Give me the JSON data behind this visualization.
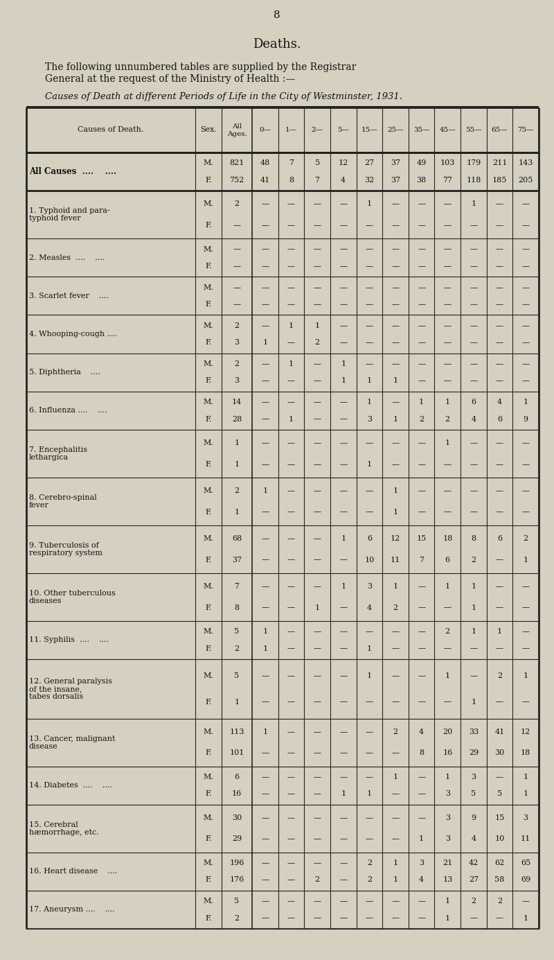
{
  "page_number": "8",
  "title": "Deaths.",
  "subtitle1": "The following unnumbered tables are supplied by the Registrar",
  "subtitle2": "General at the request of the Ministry of Health :—",
  "table_title": "Causes of Death at different Periods of Life in the City of Westminster, 1931.",
  "col_header1": "Causes of Death.",
  "col_header2": "Sex.",
  "col_header3": "All\nAges.",
  "age_headers": [
    "0—",
    "1—",
    "2—",
    "5—",
    "15—",
    "25—",
    "35—",
    "45—",
    "55—",
    "65—",
    "75—"
  ],
  "rows": [
    {
      "cause": "All Causes  ....    ....",
      "cause_style": "allcauses",
      "sex": [
        "M.",
        "F."
      ],
      "all_ages": [
        "821",
        "752"
      ],
      "data": [
        [
          "48",
          "7",
          "5",
          "12",
          "27",
          "37",
          "49",
          "103",
          "179",
          "211",
          "143"
        ],
        [
          "41",
          "8",
          "7",
          "4",
          "32",
          "37",
          "38",
          "77",
          "118",
          "185",
          "205"
        ]
      ],
      "heavy_bottom": true,
      "n_lines": 1
    },
    {
      "cause": "1. Typhoid and para-\ntyphoid fever",
      "sex": [
        "M.",
        "F."
      ],
      "all_ages": [
        "2",
        "—"
      ],
      "data": [
        [
          "—",
          "—",
          "—",
          "—",
          "1",
          "—",
          "—",
          "—",
          "1",
          "—",
          "—"
        ],
        [
          "—",
          "—",
          "—",
          "—",
          "—",
          "—",
          "—",
          "—",
          "—",
          "—",
          "—"
        ]
      ],
      "n_lines": 2
    },
    {
      "cause": "2. Measles  ....    ....",
      "sex": [
        "M.",
        "F."
      ],
      "all_ages": [
        "—",
        "—"
      ],
      "data": [
        [
          "—",
          "—",
          "—",
          "—",
          "—",
          "—",
          "—",
          "—",
          "—",
          "—",
          "—"
        ],
        [
          "—",
          "—",
          "—",
          "—",
          "—",
          "—",
          "—",
          "—",
          "—",
          "—",
          "—"
        ]
      ],
      "n_lines": 1
    },
    {
      "cause": "3. Scarlet fever    ....",
      "sex": [
        "M.",
        "F."
      ],
      "all_ages": [
        "—",
        "—"
      ],
      "data": [
        [
          "—",
          "—",
          "—",
          "—",
          "—",
          "—",
          "—",
          "—",
          "—",
          "—",
          "—"
        ],
        [
          "—",
          "—",
          "—",
          "—",
          "—",
          "—",
          "—",
          "—",
          "—",
          "—",
          "—"
        ]
      ],
      "n_lines": 1
    },
    {
      "cause": "4. Whooping-cough ....",
      "sex": [
        "M.",
        "F."
      ],
      "all_ages": [
        "2",
        "3"
      ],
      "data": [
        [
          "—",
          "1",
          "1",
          "—",
          "—",
          "—",
          "—",
          "—",
          "—",
          "—",
          "—"
        ],
        [
          "1",
          "—",
          "2",
          "—",
          "—",
          "—",
          "—",
          "—",
          "—",
          "—",
          "—"
        ]
      ],
      "n_lines": 1
    },
    {
      "cause": "5. Diphtheria    ....",
      "sex": [
        "M.",
        "F."
      ],
      "all_ages": [
        "2",
        "3"
      ],
      "data": [
        [
          "—",
          "1",
          "—",
          "1",
          "—",
          "—",
          "—",
          "—",
          "—",
          "—",
          "—"
        ],
        [
          "—",
          "—",
          "—",
          "1",
          "1",
          "1",
          "—",
          "—",
          "—",
          "—",
          "—"
        ]
      ],
      "n_lines": 1
    },
    {
      "cause": "6. Influenza ....    ....",
      "sex": [
        "M.",
        "F."
      ],
      "all_ages": [
        "14",
        "28"
      ],
      "data": [
        [
          "—",
          "—",
          "—",
          "—",
          "1",
          "—",
          "1",
          "1",
          "6",
          "4",
          "1"
        ],
        [
          "—",
          "1",
          "—",
          "—",
          "3",
          "1",
          "2",
          "2",
          "4",
          "6",
          "9"
        ]
      ],
      "n_lines": 1
    },
    {
      "cause": "7. Encephalitis\nlethargica",
      "sex": [
        "M.",
        "F."
      ],
      "all_ages": [
        "1",
        "1"
      ],
      "data": [
        [
          "—",
          "—",
          "—",
          "—",
          "—",
          "—",
          "—",
          "1",
          "—",
          "—",
          "—"
        ],
        [
          "—",
          "—",
          "—",
          "—",
          "1",
          "—",
          "—",
          "—",
          "—",
          "—",
          "—"
        ]
      ],
      "n_lines": 2
    },
    {
      "cause": "8. Cerebro-spinal\nfever",
      "sex": [
        "M.",
        "F."
      ],
      "all_ages": [
        "2",
        "1"
      ],
      "data": [
        [
          "1",
          "—",
          "—",
          "—",
          "—",
          "1",
          "—",
          "—",
          "—",
          "—",
          "—"
        ],
        [
          "—",
          "—",
          "—",
          "—",
          "—",
          "1",
          "—",
          "—",
          "—",
          "—",
          "—"
        ]
      ],
      "n_lines": 2
    },
    {
      "cause": "9. Tuberculosis of\nrespiratory system",
      "sex": [
        "M.",
        "F."
      ],
      "all_ages": [
        "68",
        "37"
      ],
      "data": [
        [
          "—",
          "—",
          "—",
          "1",
          "6",
          "12",
          "15",
          "18",
          "8",
          "6",
          "2"
        ],
        [
          "—",
          "—",
          "—",
          "—",
          "10",
          "11",
          "7",
          "6",
          "2",
          "—",
          "1"
        ]
      ],
      "n_lines": 2
    },
    {
      "cause": "10. Other tuberculous\ndiseases",
      "sex": [
        "M.",
        "F."
      ],
      "all_ages": [
        "7",
        "8"
      ],
      "data": [
        [
          "—",
          "—",
          "—",
          "1",
          "3",
          "1",
          "—",
          "1",
          "1",
          "—",
          "—"
        ],
        [
          "—",
          "—",
          "1",
          "—",
          "4",
          "2",
          "—",
          "—",
          "1",
          "—",
          "—"
        ]
      ],
      "n_lines": 2
    },
    {
      "cause": "11. Syphilis  ....    ....",
      "sex": [
        "M.",
        "F."
      ],
      "all_ages": [
        "5",
        "2"
      ],
      "data": [
        [
          "1",
          "—",
          "—",
          "—",
          "—",
          "—",
          "—",
          "2",
          "1",
          "1",
          "—"
        ],
        [
          "1",
          "—",
          "—",
          "—",
          "1",
          "—",
          "—",
          "—",
          "—",
          "—",
          "—"
        ]
      ],
      "n_lines": 1
    },
    {
      "cause": "12. General paralysis\nof the insane,\ntabes dorsalis",
      "sex": [
        "M.",
        "F."
      ],
      "all_ages": [
        "5",
        "1"
      ],
      "data": [
        [
          "—",
          "—",
          "—",
          "—",
          "1",
          "—",
          "—",
          "1",
          "—",
          "2",
          "1"
        ],
        [
          "—",
          "—",
          "—",
          "—",
          "—",
          "—",
          "—",
          "—",
          "1",
          "—",
          "—"
        ]
      ],
      "n_lines": 3
    },
    {
      "cause": "13. Cancer, malignant\ndisease",
      "sex": [
        "M.",
        "F."
      ],
      "all_ages": [
        "113",
        "101"
      ],
      "data": [
        [
          "1",
          "—",
          "—",
          "—",
          "—",
          "2",
          "4",
          "20",
          "33",
          "41",
          "12"
        ],
        [
          "—",
          "—",
          "—",
          "—",
          "—",
          "—",
          "8",
          "16",
          "29",
          "30",
          "18"
        ]
      ],
      "n_lines": 2
    },
    {
      "cause": "14. Diabetes  ....    ....",
      "sex": [
        "M.",
        "F."
      ],
      "all_ages": [
        "6",
        "16"
      ],
      "data": [
        [
          "—",
          "—",
          "—",
          "—",
          "—",
          "1",
          "—",
          "1",
          "3",
          "—",
          "1"
        ],
        [
          "—",
          "—",
          "—",
          "1",
          "1",
          "—",
          "—",
          "3",
          "5",
          "5",
          "1"
        ]
      ],
      "n_lines": 1
    },
    {
      "cause": "15. Cerebral\nhæmorrhage, etc.",
      "sex": [
        "M.",
        "F."
      ],
      "all_ages": [
        "30",
        "29"
      ],
      "data": [
        [
          "—",
          "—",
          "—",
          "—",
          "—",
          "—",
          "—",
          "3",
          "9",
          "15",
          "3"
        ],
        [
          "—",
          "—",
          "—",
          "—",
          "—",
          "—",
          "1",
          "3",
          "4",
          "10",
          "11"
        ]
      ],
      "n_lines": 2
    },
    {
      "cause": "16. Heart disease    ....",
      "sex": [
        "M.",
        "F."
      ],
      "all_ages": [
        "196",
        "176"
      ],
      "data": [
        [
          "—",
          "—",
          "—",
          "—",
          "2",
          "1",
          "3",
          "21",
          "42",
          "62",
          "65"
        ],
        [
          "—",
          "—",
          "2",
          "—",
          "2",
          "1",
          "4",
          "13",
          "27",
          "58",
          "69"
        ]
      ],
      "n_lines": 1
    },
    {
      "cause": "17. Aneurysm ....    ....",
      "sex": [
        "M.",
        "F."
      ],
      "all_ages": [
        "5",
        "2"
      ],
      "data": [
        [
          "—",
          "—",
          "—",
          "—",
          "—",
          "—",
          "—",
          "1",
          "2",
          "2",
          "—"
        ],
        [
          "—",
          "—",
          "—",
          "—",
          "—",
          "—",
          "—",
          "1",
          "—",
          "—",
          "1"
        ]
      ],
      "n_lines": 1
    }
  ],
  "bg_color": "#d6d0c0",
  "text_color": "#111111",
  "line_color": "#222222"
}
